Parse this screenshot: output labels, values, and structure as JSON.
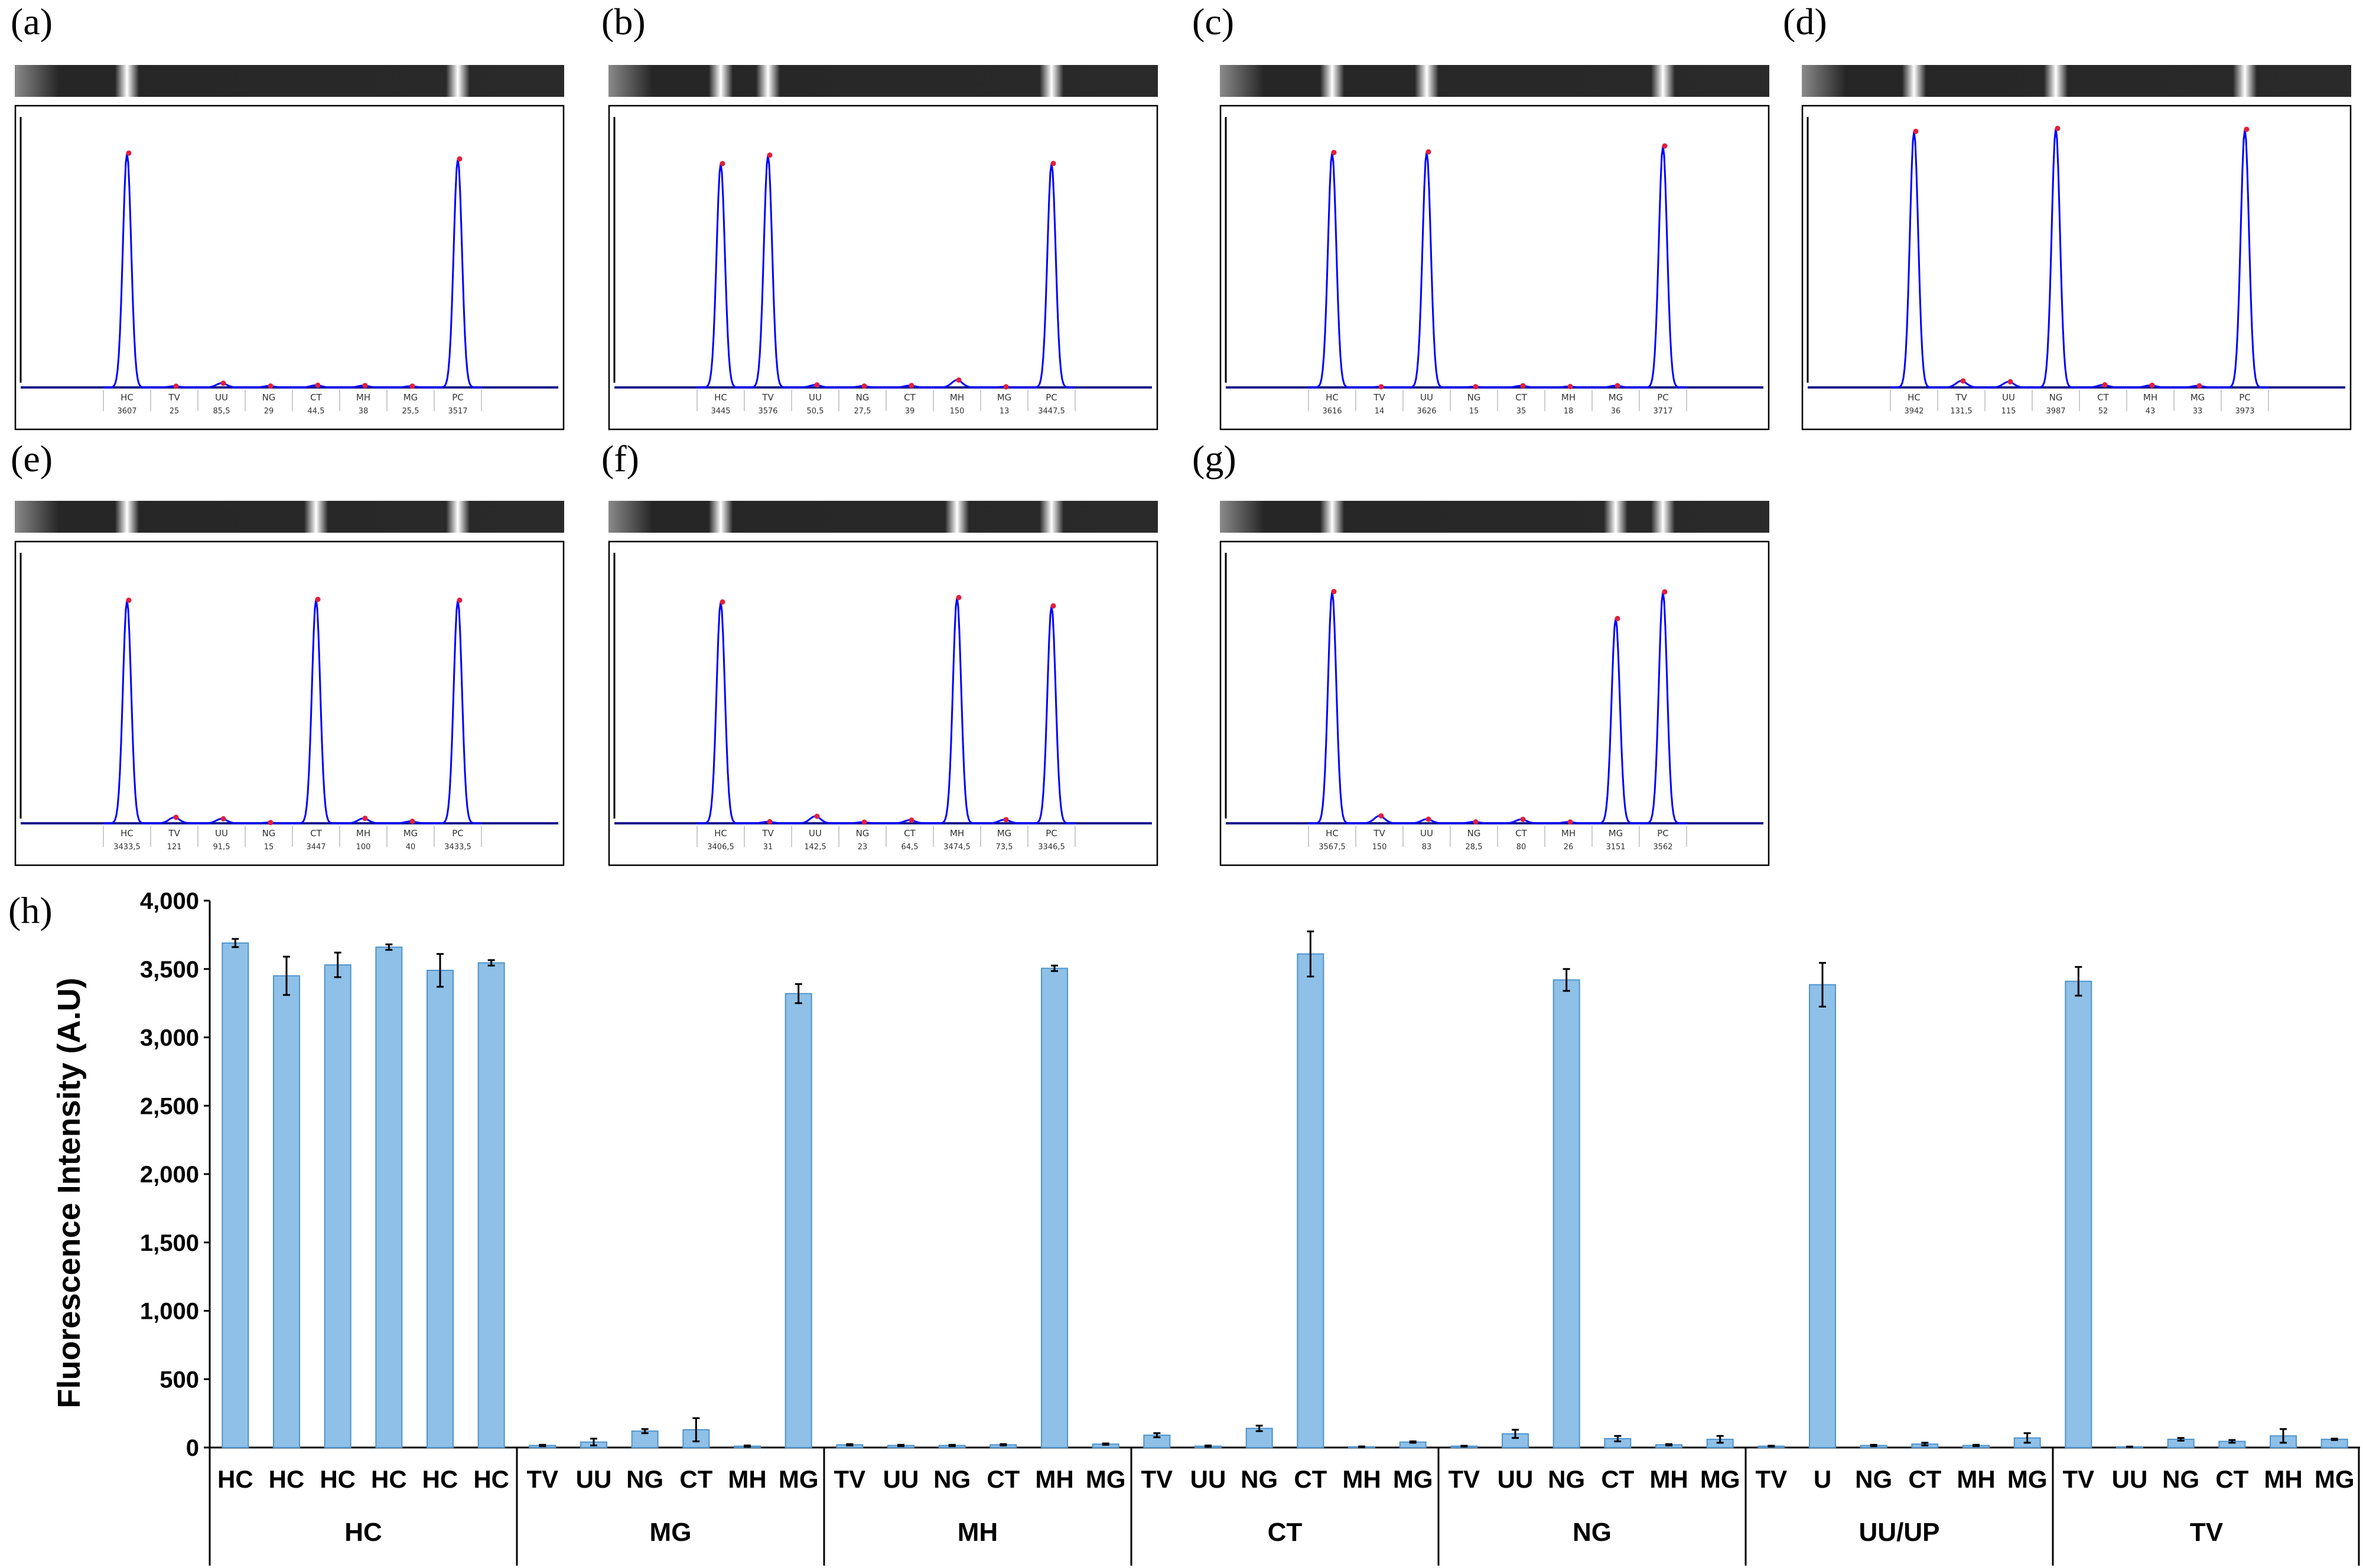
{
  "lane_labels": [
    "HC",
    "TV",
    "UU",
    "NG",
    "CT",
    "MH",
    "MG",
    "PC"
  ],
  "panels": [
    {
      "letter": "(a)",
      "values": [
        "3607",
        "25",
        "85,5",
        "29",
        "44,5",
        "38",
        "25,5",
        "3517"
      ],
      "peaks": [
        1,
        0,
        0,
        0,
        0,
        0,
        0,
        1
      ]
    },
    {
      "letter": "(b)",
      "values": [
        "3445",
        "3576",
        "50,5",
        "27,5",
        "39",
        "150",
        "13",
        "3447,5"
      ],
      "peaks": [
        1,
        1,
        0,
        0,
        0,
        0,
        0,
        1
      ]
    },
    {
      "letter": "(c)",
      "values": [
        "3616",
        "14",
        "3626",
        "15",
        "35",
        "18",
        "36",
        "3717"
      ],
      "peaks": [
        1,
        0,
        1,
        0,
        0,
        0,
        0,
        1
      ]
    },
    {
      "letter": "(d)",
      "values": [
        "3942",
        "131,5",
        "115",
        "3987",
        "52",
        "43",
        "33",
        "3973"
      ],
      "peaks": [
        1,
        0,
        0,
        1,
        0,
        0,
        0,
        1
      ]
    },
    {
      "letter": "(e)",
      "values": [
        "3433,5",
        "121",
        "91,5",
        "15",
        "3447",
        "100",
        "40",
        "3433,5"
      ],
      "peaks": [
        1,
        0,
        0,
        0,
        1,
        0,
        0,
        1
      ]
    },
    {
      "letter": "(f)",
      "values": [
        "3406,5",
        "31",
        "142,5",
        "23",
        "64,5",
        "3474,5",
        "73,5",
        "3346,5"
      ],
      "peaks": [
        1,
        0,
        0,
        0,
        0,
        1,
        0,
        1
      ]
    },
    {
      "letter": "(g)",
      "values": [
        "3567,5",
        "150",
        "83",
        "28,5",
        "80",
        "26",
        "3151",
        "3562"
      ],
      "peaks": [
        1,
        0,
        0,
        0,
        0,
        0,
        1,
        1
      ]
    }
  ],
  "bar_panel_letter": "(h)",
  "chart_data": {
    "type": "bar",
    "title": "",
    "xlabel": "",
    "ylabel": "Fluorescence Intensity (A.U)",
    "ylim": [
      0,
      4000
    ],
    "yticks": [
      "0",
      "500",
      "1,000",
      "1,500",
      "2,000",
      "2,500",
      "3,000",
      "3,500",
      "4,000"
    ],
    "groups": [
      {
        "name": "HC",
        "categories": [
          "HC",
          "HC",
          "HC",
          "HC",
          "HC",
          "HC"
        ],
        "values": [
          3690,
          3450,
          3530,
          3660,
          3490,
          3545
        ],
        "errors": [
          30,
          140,
          90,
          20,
          120,
          20
        ]
      },
      {
        "name": "MG",
        "categories": [
          "TV",
          "UU",
          "NG",
          "CT",
          "MH",
          "MG"
        ],
        "values": [
          15,
          40,
          120,
          130,
          10,
          3320
        ],
        "errors": [
          5,
          25,
          15,
          85,
          5,
          70
        ]
      },
      {
        "name": "MH",
        "categories": [
          "TV",
          "UU",
          "NG",
          "CT",
          "MH",
          "MG"
        ],
        "values": [
          20,
          15,
          15,
          20,
          3505,
          25
        ],
        "errors": [
          5,
          5,
          5,
          5,
          20,
          5
        ]
      },
      {
        "name": "CT",
        "categories": [
          "TV",
          "UU",
          "NG",
          "CT",
          "MH",
          "MG"
        ],
        "values": [
          90,
          10,
          140,
          3610,
          5,
          40
        ],
        "errors": [
          15,
          5,
          20,
          165,
          3,
          5
        ]
      },
      {
        "name": "NG",
        "categories": [
          "TV",
          "UU",
          "NG",
          "CT",
          "MH",
          "MG"
        ],
        "values": [
          10,
          100,
          3420,
          65,
          20,
          60
        ],
        "errors": [
          3,
          30,
          80,
          20,
          5,
          25
        ]
      },
      {
        "name": "UU/UP",
        "categories": [
          "TV",
          "U",
          "NG",
          "CT",
          "MH",
          "MG"
        ],
        "values": [
          10,
          3385,
          15,
          25,
          15,
          70
        ],
        "errors": [
          3,
          160,
          5,
          10,
          5,
          35
        ]
      },
      {
        "name": "TV",
        "categories": [
          "TV",
          "UU",
          "NG",
          "CT",
          "MH",
          "MG"
        ],
        "values": [
          3410,
          5,
          60,
          45,
          85,
          60
        ],
        "errors": [
          105,
          2,
          10,
          10,
          50,
          5
        ]
      }
    ]
  }
}
